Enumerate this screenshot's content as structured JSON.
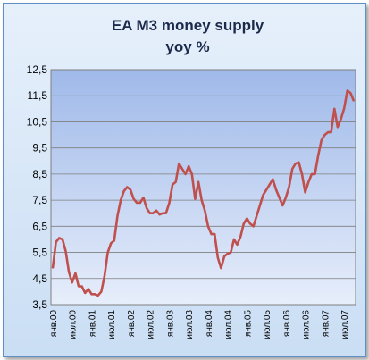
{
  "chart_data": {
    "type": "line",
    "title": "EA M3 money supply",
    "subtitle": "yoy %",
    "xlabel": "",
    "ylabel": "",
    "ylim": [
      3.5,
      12.5
    ],
    "yticks": [
      "3,5",
      "4,5",
      "5,5",
      "6,5",
      "7,5",
      "8,5",
      "9,5",
      "10,5",
      "11,5",
      "12,5"
    ],
    "xtick_labels": [
      "янв.00",
      "июл.00",
      "янв.01",
      "июл.01",
      "янв.02",
      "июл.02",
      "янв.03",
      "июл.03",
      "янв.04",
      "июл.04",
      "янв.05",
      "июл.05",
      "янв.06",
      "июл.06",
      "янв.07",
      "июл.07"
    ],
    "grid": true,
    "line_color": "#c0504d",
    "series": [
      {
        "values": [
          4.9,
          5.9,
          6.05,
          6.0,
          5.55,
          4.75,
          4.35,
          4.7,
          4.2,
          4.2,
          3.95,
          4.1,
          3.9,
          3.9,
          3.85,
          4.0,
          4.6,
          5.5,
          5.85,
          5.95,
          6.9,
          7.5,
          7.85,
          8.0,
          7.9,
          7.55,
          7.4,
          7.4,
          7.6,
          7.2,
          7.0,
          7.0,
          7.1,
          6.95,
          7.0,
          7.0,
          7.4,
          8.1,
          8.2,
          8.9,
          8.7,
          8.5,
          8.8,
          8.5,
          7.55,
          8.2,
          7.5,
          7.1,
          6.5,
          6.2,
          6.2,
          5.3,
          4.9,
          5.35,
          5.45,
          5.5,
          6.0,
          5.8,
          6.1,
          6.6,
          6.8,
          6.6,
          6.5,
          6.9,
          7.3,
          7.7,
          7.9,
          8.1,
          8.3,
          7.9,
          7.6,
          7.3,
          7.6,
          8.0,
          8.7,
          8.9,
          8.95,
          8.5,
          7.8,
          8.2,
          8.5,
          8.5,
          9.2,
          9.8,
          10.0,
          10.1,
          10.1,
          11.0,
          10.3,
          10.6,
          11.0,
          11.7,
          11.6,
          11.3
        ]
      }
    ]
  }
}
